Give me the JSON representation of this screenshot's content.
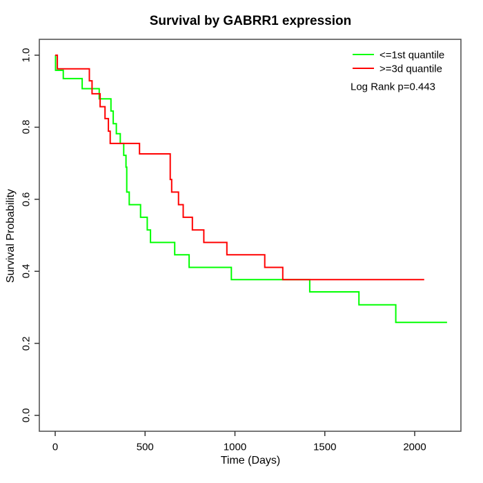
{
  "title": "Survival by GABRR1 expression",
  "legend": [
    {
      "label": "<=1st quantile",
      "color": "#00ff00"
    },
    {
      "label": ">=3d quantile",
      "color": "#ff0000"
    }
  ],
  "annotation": "Log Rank p=0.443",
  "chart_data": {
    "type": "line",
    "subtype": "kaplan-meier-step",
    "title": "Survival by GABRR1 expression",
    "xlabel": "Time (Days)",
    "ylabel": "Survival Probability",
    "xlim": [
      0,
      2200
    ],
    "ylim": [
      0.0,
      1.0
    ],
    "x_ticks": [
      0,
      500,
      1000,
      1500,
      2000
    ],
    "x_tick_labels": [
      "0",
      "500",
      "1000",
      "1500",
      "2000"
    ],
    "y_ticks": [
      0.0,
      0.2,
      0.4,
      0.6,
      0.8,
      1.0
    ],
    "y_tick_labels": [
      "0.0",
      "0.2",
      "0.4",
      "0.6",
      "0.8",
      "1.0"
    ],
    "grid": false,
    "legend_position": "top-right",
    "log_rank_annotation": "Log Rank p=0.443",
    "series": [
      {
        "name": "<=1st quantile",
        "color": "#00ff00",
        "end_time": 2180,
        "steps": [
          [
            0,
            1.0
          ],
          [
            2,
            0.958
          ],
          [
            45,
            0.935
          ],
          [
            150,
            0.907
          ],
          [
            245,
            0.879
          ],
          [
            310,
            0.845
          ],
          [
            323,
            0.81
          ],
          [
            340,
            0.782
          ],
          [
            362,
            0.755
          ],
          [
            381,
            0.722
          ],
          [
            394,
            0.689
          ],
          [
            398,
            0.62
          ],
          [
            412,
            0.585
          ],
          [
            475,
            0.55
          ],
          [
            512,
            0.515
          ],
          [
            530,
            0.48
          ],
          [
            665,
            0.446
          ],
          [
            745,
            0.411
          ],
          [
            980,
            0.377
          ],
          [
            1416,
            0.343
          ],
          [
            1690,
            0.307
          ],
          [
            1895,
            0.258
          ]
        ]
      },
      {
        "name": ">=3d quantile",
        "color": "#ff0000",
        "end_time": 2053,
        "steps": [
          [
            0,
            1.0
          ],
          [
            12,
            0.962
          ],
          [
            190,
            0.929
          ],
          [
            205,
            0.893
          ],
          [
            250,
            0.857
          ],
          [
            277,
            0.824
          ],
          [
            296,
            0.789
          ],
          [
            306,
            0.755
          ],
          [
            469,
            0.726
          ],
          [
            640,
            0.655
          ],
          [
            648,
            0.62
          ],
          [
            686,
            0.585
          ],
          [
            712,
            0.55
          ],
          [
            763,
            0.515
          ],
          [
            827,
            0.48
          ],
          [
            955,
            0.446
          ],
          [
            1166,
            0.411
          ],
          [
            1266,
            0.377
          ]
        ]
      }
    ]
  }
}
